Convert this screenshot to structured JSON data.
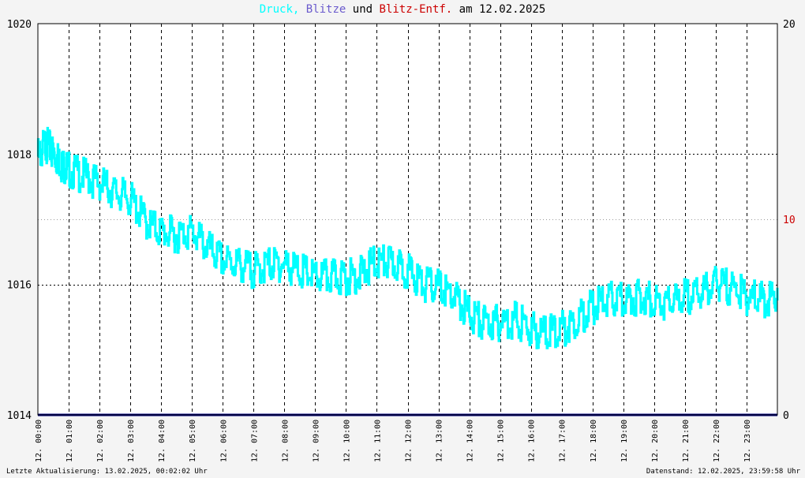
{
  "title": {
    "part1": "Druck,",
    "part2": "Blitze",
    "part3": "und",
    "part4": "Blitz-Entf.",
    "part5": "am 12.02.2025"
  },
  "colors": {
    "druck": "#00ffff",
    "blitze": "#6a5acd",
    "blitz_entf": "#cc0000",
    "axis_bottom": "#000080",
    "background": "#f4f4f4",
    "plot_bg": "#ffffff"
  },
  "footer": {
    "left": "Letzte Aktualisierung: 13.02.2025, 00:02:02 Uhr",
    "right": "Datenstand: 12.02.2025, 23:59:58 Uhr"
  },
  "chart_data": {
    "type": "line",
    "title": "Druck, Blitze und Blitz-Entf. am 12.02.2025",
    "y_left": {
      "lim": [
        1014,
        1020
      ],
      "ticks": [
        "1014",
        "1016",
        "1018",
        "1020"
      ]
    },
    "y_right": {
      "lim": [
        0,
        20
      ],
      "ticks": [
        "0",
        "10",
        "20"
      ]
    },
    "x_lim_hours": [
      0,
      24
    ],
    "x_ticks": [
      "12. 00:00",
      "12. 01:00",
      "12. 02:00",
      "12. 03:00",
      "12. 04:00",
      "12. 05:00",
      "12. 06:00",
      "12. 07:00",
      "12. 08:00",
      "12. 09:00",
      "12. 10:00",
      "12. 11:00",
      "12. 12:00",
      "12. 13:00",
      "12. 14:00",
      "12. 15:00",
      "12. 16:00",
      "12. 17:00",
      "12. 18:00",
      "12. 19:00",
      "12. 20:00",
      "12. 21:00",
      "12. 22:00",
      "12. 23:00"
    ],
    "grid": true,
    "series": [
      {
        "name": "Druck",
        "hours": [
          0,
          0.25,
          0.5,
          0.75,
          1,
          1.5,
          2,
          2.5,
          3,
          3.5,
          4,
          4.5,
          5,
          5.5,
          6,
          6.5,
          7,
          7.5,
          8,
          8.5,
          9,
          9.5,
          10,
          10.5,
          11,
          11.5,
          12,
          12.5,
          13,
          13.5,
          14,
          14.5,
          15,
          15.5,
          16,
          16.5,
          17,
          17.5,
          18,
          18.5,
          19,
          19.5,
          20,
          20.5,
          21,
          21.5,
          22,
          22.5,
          23,
          23.5,
          24
        ],
        "values": [
          1018.1,
          1018.3,
          1018.15,
          1018.0,
          1017.9,
          1017.8,
          1017.7,
          1017.55,
          1017.45,
          1017.1,
          1016.95,
          1016.9,
          1016.95,
          1016.7,
          1016.5,
          1016.45,
          1016.35,
          1016.45,
          1016.45,
          1016.35,
          1016.25,
          1016.25,
          1016.25,
          1016.3,
          1016.5,
          1016.45,
          1016.35,
          1016.15,
          1016.1,
          1015.95,
          1015.7,
          1015.55,
          1015.55,
          1015.6,
          1015.45,
          1015.4,
          1015.45,
          1015.6,
          1015.8,
          1015.9,
          1015.9,
          1015.95,
          1015.9,
          1015.85,
          1015.95,
          1016.0,
          1016.15,
          1016.1,
          1015.95,
          1015.9,
          1015.95
        ]
      },
      {
        "name": "Blitze",
        "values": []
      },
      {
        "name": "Blitz-Entf.",
        "values": []
      }
    ]
  }
}
